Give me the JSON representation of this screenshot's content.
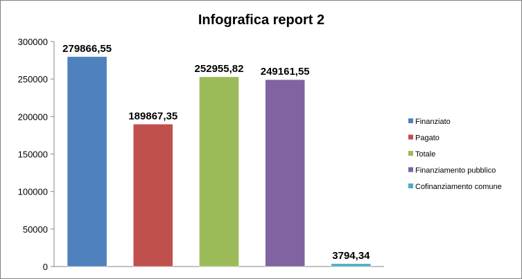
{
  "chart_data": {
    "type": "bar",
    "title": "Infografica report 2",
    "categories": [
      "Finanziato",
      "Pagato",
      "Totale",
      "Finanziamento pubblico",
      "Cofinanziamento comune"
    ],
    "values": [
      279866.55,
      189867.35,
      252955.82,
      249161.55,
      3794.34
    ],
    "data_labels": [
      "279866,55",
      "189867,35",
      "252955,82",
      "249161,55",
      "3794,34"
    ],
    "colors": [
      "#4f81bd",
      "#c0504d",
      "#9bbb59",
      "#8064a2",
      "#4bacc6"
    ],
    "yticks": [
      "0",
      "50000",
      "100000",
      "150000",
      "200000",
      "250000",
      "300000"
    ],
    "ylim": [
      0,
      300000
    ],
    "grid": false,
    "legend": "right"
  }
}
